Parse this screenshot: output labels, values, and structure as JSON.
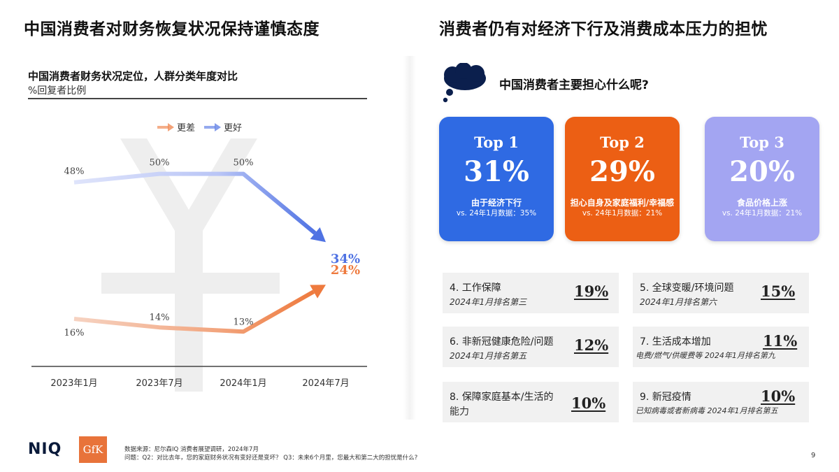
{
  "titles": {
    "left": "中国消费者对财务恢复状况保持谨慎态度",
    "right": "消费者仍有对经济下行及消费成本压力的担忧"
  },
  "chart_data": {
    "type": "line",
    "title": "中国消费者财务状况定位，人群分类年度对比",
    "subtitle": "%回复者比例",
    "categories": [
      "2023年1月",
      "2023年7月",
      "2024年1月",
      "2024年7月"
    ],
    "series": [
      {
        "name": "更差",
        "color": "#ee7a3e",
        "values": [
          16,
          14,
          13,
          24
        ],
        "labels": [
          "16%",
          "14%",
          "13%",
          "24%"
        ]
      },
      {
        "name": "更好",
        "color": "#4f72e3",
        "values": [
          48,
          50,
          50,
          34
        ],
        "labels": [
          "48%",
          "50%",
          "50%",
          "34%"
        ]
      }
    ],
    "ylim": [
      0,
      60
    ],
    "legend": "top",
    "grid": false
  },
  "worry": {
    "question": "中国消费者主要担心什么呢?",
    "top": [
      {
        "rank": "Top 1",
        "pct": "31%",
        "desc": "由于经济下行",
        "prev": "vs. 24年1月数据：35%",
        "color": "#2f6ae3"
      },
      {
        "rank": "Top 2",
        "pct": "29%",
        "desc": "担心自身及家庭福利/幸福感",
        "prev": "vs. 24年1月数据：21%",
        "color": "#ec5f14"
      },
      {
        "rank": "Top 3",
        "pct": "20%",
        "desc": "食品价格上涨",
        "prev": "vs. 24年1月数据：21%",
        "color": "#a3a5f2"
      }
    ],
    "ranks": [
      {
        "label": "4. 工作保障",
        "sub": "2024年1月排名第三",
        "value": "19%"
      },
      {
        "label": "5. 全球变暖/环境问题",
        "sub": "2024年1月排名第六",
        "value": "15%"
      },
      {
        "label": "6. 非新冠健康危险/问题",
        "sub": "2024年1月排名第五",
        "value": "12%"
      },
      {
        "label": "7. 生活成本增加",
        "sub": "电费/燃气/供暖费等  2024年1月排名第九",
        "value": "11%"
      },
      {
        "label": "8. 保障家庭基本/生活的",
        "sub": "能力",
        "value": "10%"
      },
      {
        "label": "9. 新冠疫情",
        "sub": "已知病毒或者新病毒  2024年1月排名第五",
        "value": "10%"
      }
    ]
  },
  "footer": {
    "logo_niq": "NIQ",
    "logo_gfk": "GfK",
    "source": "数据来源：尼尔森IQ 消费者展望调研，2024年7月",
    "question": "问题：Q2：对比去年，您的家庭财务状况有变好还是变坏？ Q3：未来6个月里，您最大和第二大的担忧是什么?",
    "page": "9"
  }
}
